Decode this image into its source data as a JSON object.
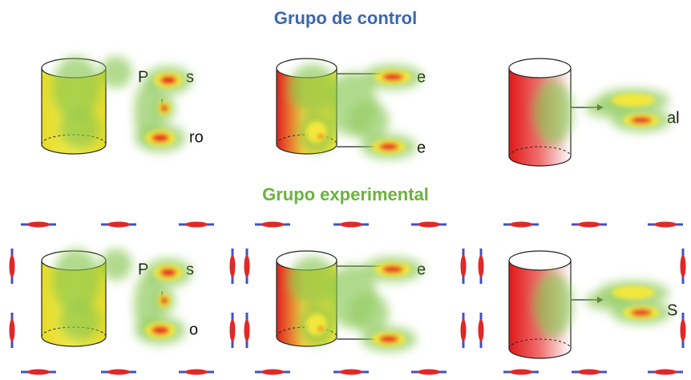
{
  "header": {
    "control_title": "Grupo de control",
    "experimental_title": "Grupo experimental"
  },
  "control": {
    "panels": [
      {
        "labels": [
          "P",
          "s",
          "l",
          "ro"
        ]
      },
      {
        "labels": [
          "e",
          "e"
        ]
      },
      {
        "labels": [
          "al"
        ]
      }
    ]
  },
  "experimental": {
    "panels": [
      {
        "labels": [
          "P",
          "s",
          "l",
          "o"
        ]
      },
      {
        "labels": [
          "e"
        ]
      },
      {
        "labels": [
          "S"
        ]
      }
    ]
  }
}
